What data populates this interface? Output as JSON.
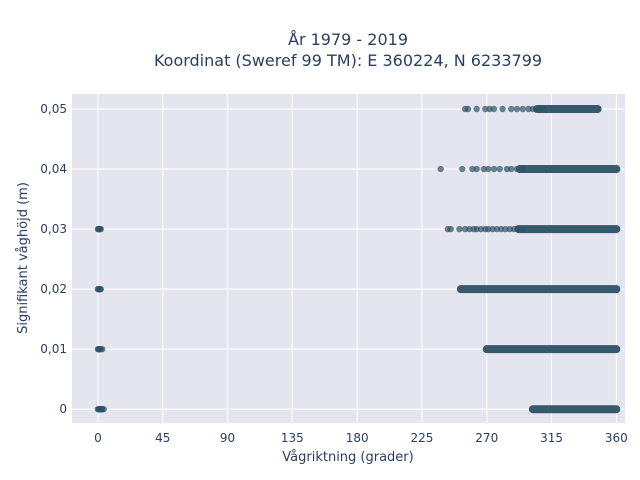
{
  "chart_data": {
    "type": "scatter",
    "title_lines": [
      "År 1979 - 2019",
      "Koordinat (Sweref 99 TM): E 360224, N 6233799"
    ],
    "xlabel": "Vågriktning (grader)",
    "ylabel": "Signifikant våghöjd (m)",
    "xlim": [
      -18,
      366
    ],
    "ylim": [
      -0.0023,
      0.0525
    ],
    "xticks": [
      0,
      45,
      90,
      135,
      180,
      225,
      270,
      315,
      360
    ],
    "xtick_labels": [
      "0",
      "45",
      "90",
      "135",
      "180",
      "225",
      "270",
      "315",
      "360"
    ],
    "yticks": [
      0,
      0.01,
      0.02,
      0.03,
      0.04,
      0.05
    ],
    "ytick_labels": [
      "0",
      "0,01",
      "0,02",
      "0,03",
      "0,04",
      "0,05"
    ],
    "grid": true,
    "legend": "none",
    "marker_color": "#2e5266",
    "plot_background": "#e5e5ef",
    "series": [
      {
        "points": [
          [
            0,
            0
          ],
          [
            0.5,
            0
          ],
          [
            1,
            0
          ],
          [
            1.5,
            0
          ],
          [
            2,
            0
          ],
          [
            2.5,
            0
          ],
          [
            3,
            0
          ],
          [
            4,
            0
          ],
          [
            0,
            0.01
          ],
          [
            0.5,
            0.01
          ],
          [
            1,
            0.01
          ],
          [
            1.5,
            0.01
          ],
          [
            2,
            0.01
          ],
          [
            3,
            0.01
          ],
          [
            0,
            0.02
          ],
          [
            0.5,
            0.02
          ],
          [
            1,
            0.02
          ],
          [
            1.5,
            0.02
          ],
          [
            2,
            0.02
          ],
          [
            0,
            0.03
          ],
          [
            0.5,
            0.03
          ],
          [
            1,
            0.03
          ],
          [
            1.5,
            0.03
          ],
          [
            2,
            0.03
          ],
          [
            238,
            0.04
          ],
          [
            253,
            0.04
          ],
          [
            260,
            0.04
          ],
          [
            263,
            0.04
          ],
          [
            268,
            0.04
          ],
          [
            271,
            0.04
          ],
          [
            275,
            0.04
          ],
          [
            279,
            0.04
          ],
          [
            284,
            0.04
          ],
          [
            287,
            0.04
          ],
          [
            291,
            0.04
          ],
          [
            295,
            0.04
          ],
          [
            255,
            0.05
          ],
          [
            257,
            0.05
          ],
          [
            263,
            0.05
          ],
          [
            269,
            0.05
          ],
          [
            272,
            0.05
          ],
          [
            275,
            0.05
          ],
          [
            281,
            0.05
          ],
          [
            287,
            0.05
          ],
          [
            291,
            0.05
          ],
          [
            295,
            0.05
          ],
          [
            299,
            0.05
          ],
          [
            302,
            0.05
          ],
          [
            306,
            0.05
          ],
          [
            309,
            0.05
          ],
          [
            243,
            0.03
          ],
          [
            245,
            0.03
          ],
          [
            251,
            0.03
          ],
          [
            255,
            0.03
          ],
          [
            258,
            0.03
          ],
          [
            261,
            0.03
          ],
          [
            263,
            0.03
          ],
          [
            266,
            0.03
          ],
          [
            269,
            0.03
          ],
          [
            271,
            0.03
          ],
          [
            274,
            0.03
          ],
          [
            277,
            0.03
          ],
          [
            280,
            0.03
          ],
          [
            283,
            0.03
          ],
          [
            286,
            0.03
          ],
          [
            289,
            0.03
          ],
          [
            292,
            0.03
          ],
          [
            295,
            0.03
          ]
        ],
        "dense_segments": [
          {
            "y": 0,
            "x_from": 302,
            "x_to": 360
          },
          {
            "y": 0.01,
            "x_from": 270,
            "x_to": 360
          },
          {
            "y": 0.02,
            "x_from": 252,
            "x_to": 360
          },
          {
            "y": 0.03,
            "x_from": 292,
            "x_to": 360
          },
          {
            "y": 0.04,
            "x_from": 293,
            "x_to": 360
          },
          {
            "y": 0.05,
            "x_from": 305,
            "x_to": 347
          }
        ]
      }
    ]
  }
}
